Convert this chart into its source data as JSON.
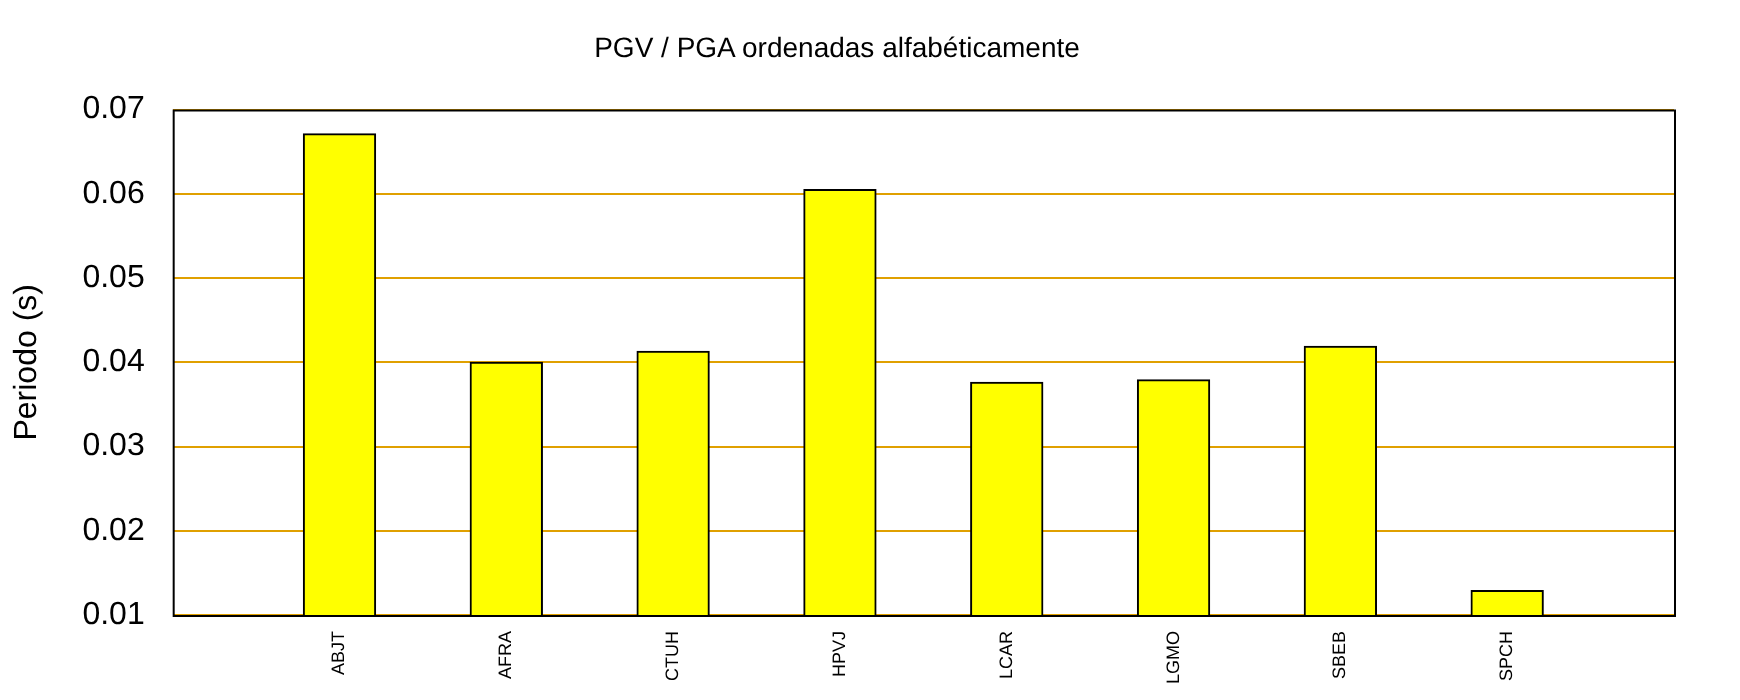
{
  "chart_data": {
    "type": "bar",
    "title": "PGV / PGA ordenadas alfabéticamente",
    "ylabel": "Periodo (s)",
    "categories": [
      "ABJT",
      "AFRA",
      "CTUH",
      "HPVJ",
      "LCAR",
      "LGMO",
      "SBEB",
      "SPCH"
    ],
    "values": [
      0.0671,
      0.04,
      0.0413,
      0.0605,
      0.0376,
      0.0379,
      0.0419,
      0.0129
    ],
    "color": "#ffff00",
    "ylim": [
      0.01,
      0.07
    ],
    "yticks": [
      0.01,
      0.02,
      0.03,
      0.04,
      0.05,
      0.06,
      0.07
    ],
    "grid": "y",
    "legend": false
  }
}
